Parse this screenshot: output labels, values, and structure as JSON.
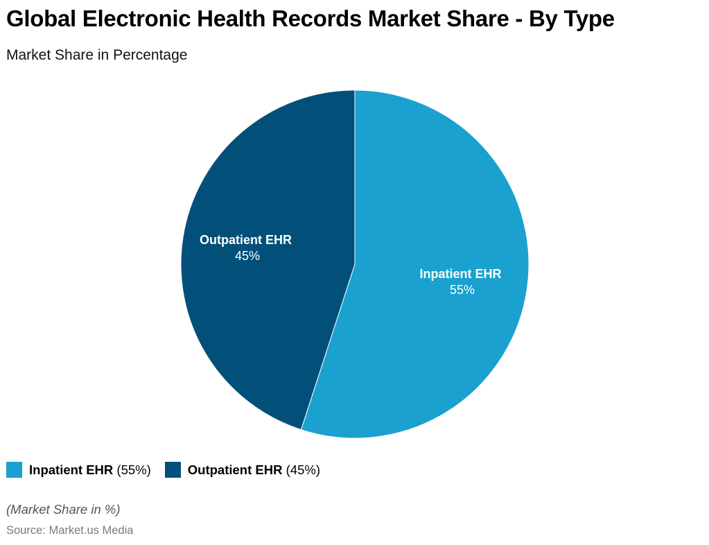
{
  "title": "Global Electronic Health Records Market Share - By Type",
  "subtitle": "Market Share in Percentage",
  "chart_data": {
    "type": "pie",
    "title": "Global Electronic Health Records Market Share - By Type",
    "subtitle": "Market Share in Percentage",
    "categories": [
      "Inpatient EHR",
      "Outpatient EHR"
    ],
    "values": [
      55,
      45
    ],
    "unit": "%",
    "colors": [
      "#1aa1cf",
      "#02507a"
    ],
    "start_angle": "12 o'clock, clockwise",
    "legend_position": "bottom-left",
    "note": "(Market Share in %)",
    "source": "Source: Market.us Media"
  },
  "slices": [
    {
      "name": "Inpatient EHR",
      "value_label": "55%",
      "color": "#1aa1cf"
    },
    {
      "name": "Outpatient EHR",
      "value_label": "45%",
      "color": "#02507a"
    }
  ],
  "legend": [
    {
      "name": "Inpatient EHR",
      "value": "(55%)",
      "color": "#1aa1cf"
    },
    {
      "name": "Outpatient EHR",
      "value": "(45%)",
      "color": "#02507a"
    }
  ],
  "note": "(Market Share in %)",
  "source": "Source: Market.us Media"
}
